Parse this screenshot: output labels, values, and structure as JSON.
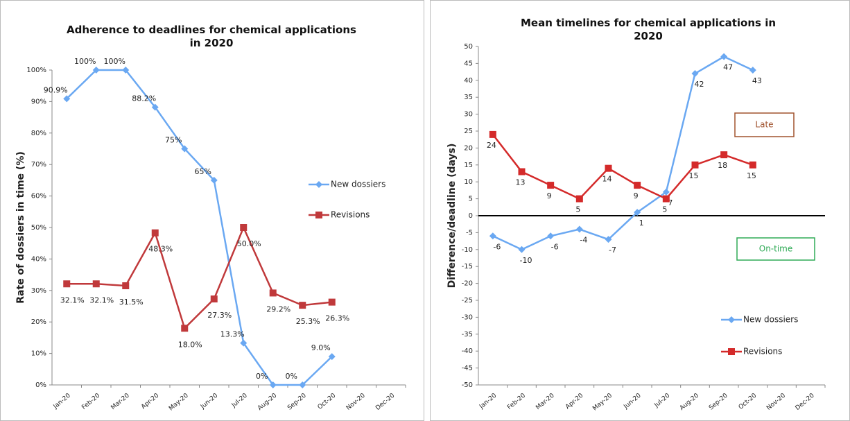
{
  "chart_data": [
    {
      "type": "line",
      "title": "Adherence to deadlines for chemical applications in 2020",
      "y_label": "Rate of dossiers in time (%)",
      "categories": [
        "Jan-20",
        "Feb-20",
        "Mar-20",
        "Apr-20",
        "May-20",
        "Jun-20",
        "Jul-20",
        "Aug-20",
        "Sep-20",
        "Oct-20",
        "Nov-20",
        "Dec-20"
      ],
      "ylim": [
        0,
        100
      ],
      "yticks": [
        {
          "value": 0,
          "label": "0%"
        },
        {
          "value": 10,
          "label": "10%"
        },
        {
          "value": 20,
          "label": "20%"
        },
        {
          "value": 30,
          "label": "30%"
        },
        {
          "value": 40,
          "label": "40%"
        },
        {
          "value": 50,
          "label": "50%"
        },
        {
          "value": 60,
          "label": "60%"
        },
        {
          "value": 70,
          "label": "70%"
        },
        {
          "value": 80,
          "label": "80%"
        },
        {
          "value": 90,
          "label": "90%"
        },
        {
          "value": 100,
          "label": "100%"
        }
      ],
      "series": [
        {
          "name": "New dossiers",
          "color": "#6aa8f2",
          "marker": "diamond",
          "values": [
            90.9,
            100,
            100,
            88.2,
            75,
            65,
            13.3,
            0,
            0,
            9.0,
            null,
            null
          ],
          "value_labels": [
            "90.9%",
            "100%",
            "100%",
            "88.2%",
            "75%",
            "65%",
            "13.3%",
            "0%",
            "0%",
            "9.0%",
            null,
            null
          ]
        },
        {
          "name": "Revisions",
          "color": "#c0393b",
          "marker": "square",
          "values": [
            32.1,
            32.1,
            31.5,
            48.3,
            18.0,
            27.3,
            50.0,
            29.2,
            25.3,
            26.3,
            null,
            null
          ],
          "value_labels": [
            "32.1%",
            "32.1%",
            "31.5%",
            "48.3%",
            "18.0%",
            "27.3%",
            "50.0%",
            "29.2%",
            "25.3%",
            "26.3%",
            null,
            null
          ]
        }
      ]
    },
    {
      "type": "line",
      "title": "Mean timelines for chemical applications in 2020",
      "y_label": "Difference/deadline (days)",
      "categories": [
        "Jan-20",
        "Feb-20",
        "Mar-20",
        "Apr-20",
        "May-20",
        "Jun-20",
        "Jul-20",
        "Aug-20",
        "Sep-20",
        "Oct-20",
        "Nov-20",
        "Dec-20"
      ],
      "ylim": [
        -50,
        50
      ],
      "yticks": [
        -50,
        -45,
        -40,
        -35,
        -30,
        -25,
        -20,
        -15,
        -10,
        -5,
        0,
        5,
        10,
        15,
        20,
        25,
        30,
        35,
        40,
        45,
        50
      ],
      "zero_line": true,
      "series": [
        {
          "name": "New dossiers",
          "color": "#6aa8f2",
          "marker": "diamond",
          "values": [
            -6,
            -10,
            -6,
            -4,
            -7,
            1,
            7,
            42,
            47,
            43,
            null,
            null
          ]
        },
        {
          "name": "Revisions",
          "color": "#d42a2a",
          "marker": "square",
          "values": [
            24,
            13,
            9,
            5,
            14,
            9,
            5,
            15,
            18,
            15,
            null,
            null
          ]
        }
      ],
      "annotations": [
        {
          "text": "Late",
          "color": "#a0522d"
        },
        {
          "text": "On-time",
          "color": "#2eaa55"
        }
      ]
    }
  ]
}
